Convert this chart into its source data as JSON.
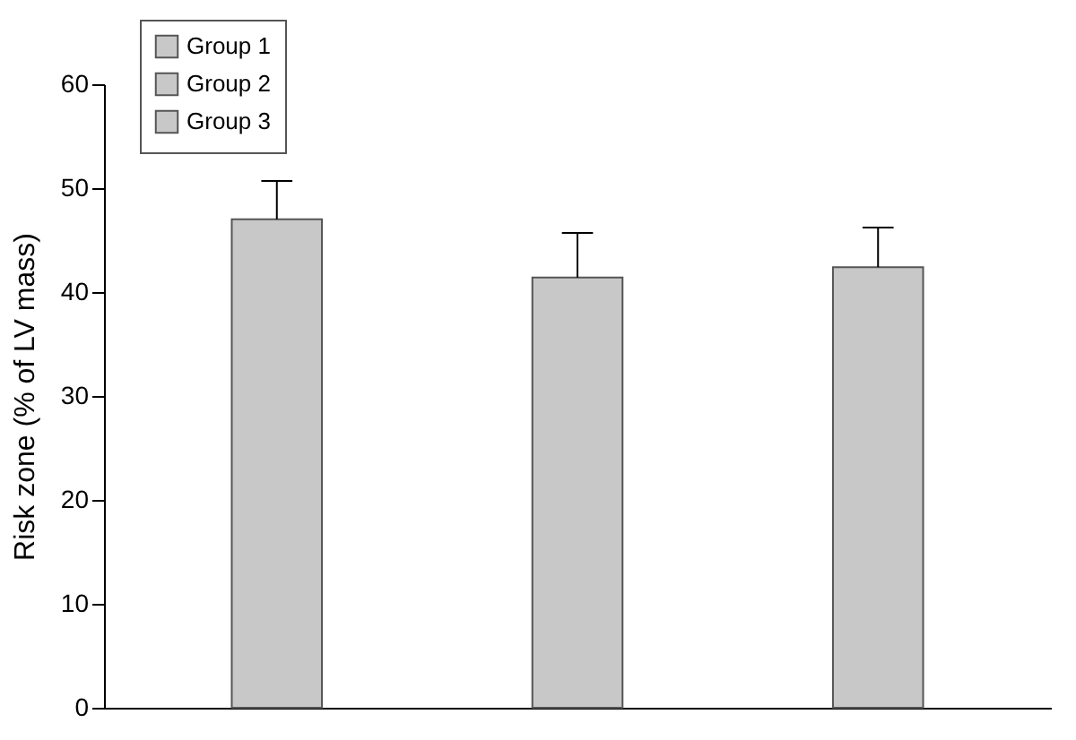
{
  "chart_data": {
    "type": "bar",
    "ylabel": "Risk zone (% of LV mass)",
    "categories": [
      null
    ],
    "series": [
      {
        "name": "Group 1",
        "color": "#c8c8c8",
        "values": [
          47
        ],
        "errors": [
          [
            47,
            50.7
          ]
        ]
      },
      {
        "name": "Group 2",
        "color": "#c8c8c8",
        "values": [
          41.4
        ],
        "errors": [
          [
            41.4,
            45.7
          ]
        ]
      },
      {
        "name": "Group 3",
        "color": "#c8c8c8",
        "values": [
          42.4
        ],
        "errors": [
          [
            42.4,
            46.2
          ]
        ]
      }
    ],
    "ylim": [
      0,
      60
    ],
    "yticks": [
      0,
      10,
      20,
      30,
      40,
      50,
      60
    ],
    "grid": false,
    "legend": "top left",
    "tick_labels": "y"
  }
}
